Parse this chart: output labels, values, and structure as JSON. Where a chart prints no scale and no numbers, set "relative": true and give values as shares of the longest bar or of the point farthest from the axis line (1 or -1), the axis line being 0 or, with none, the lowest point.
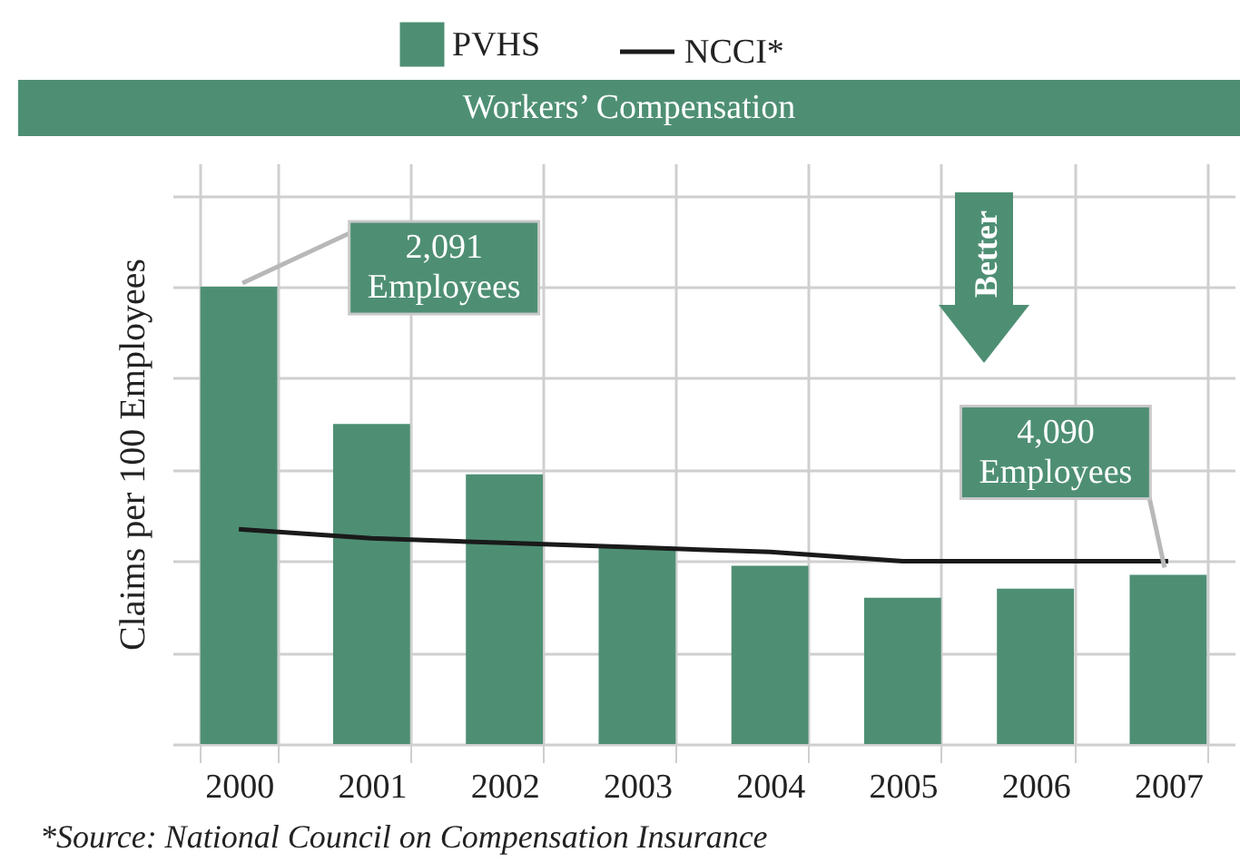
{
  "chart_data": {
    "type": "bar",
    "title": "Workers’ Compensation",
    "ylabel": "Claims per 100 Employees",
    "relative": true,
    "grid": true,
    "legend": "top",
    "categories": [
      "2000",
      "2001",
      "2002",
      "2003",
      "2004",
      "2005",
      "2006",
      "2007"
    ],
    "series": [
      {
        "name": "PVHS",
        "color": "#4e8f74",
        "values": [
          1,
          0.7,
          0.59,
          0.43,
          0.39,
          0.32,
          0.34,
          0.37
        ]
      },
      {
        "name": "NCCI*",
        "type": "line",
        "color": "#1a1a1a",
        "values": [
          0.47,
          0.45,
          0.44,
          0.43,
          0.42,
          0.4,
          0.4,
          0.4
        ]
      }
    ],
    "annotations": [
      {
        "text": "2,091 Employees",
        "x": "2000",
        "y": 1
      },
      {
        "text": "4,090 Employees",
        "x": "2007",
        "y": 0.37
      },
      "Better",
      "*Source:  National Council on Compensation Insurance"
    ]
  }
}
